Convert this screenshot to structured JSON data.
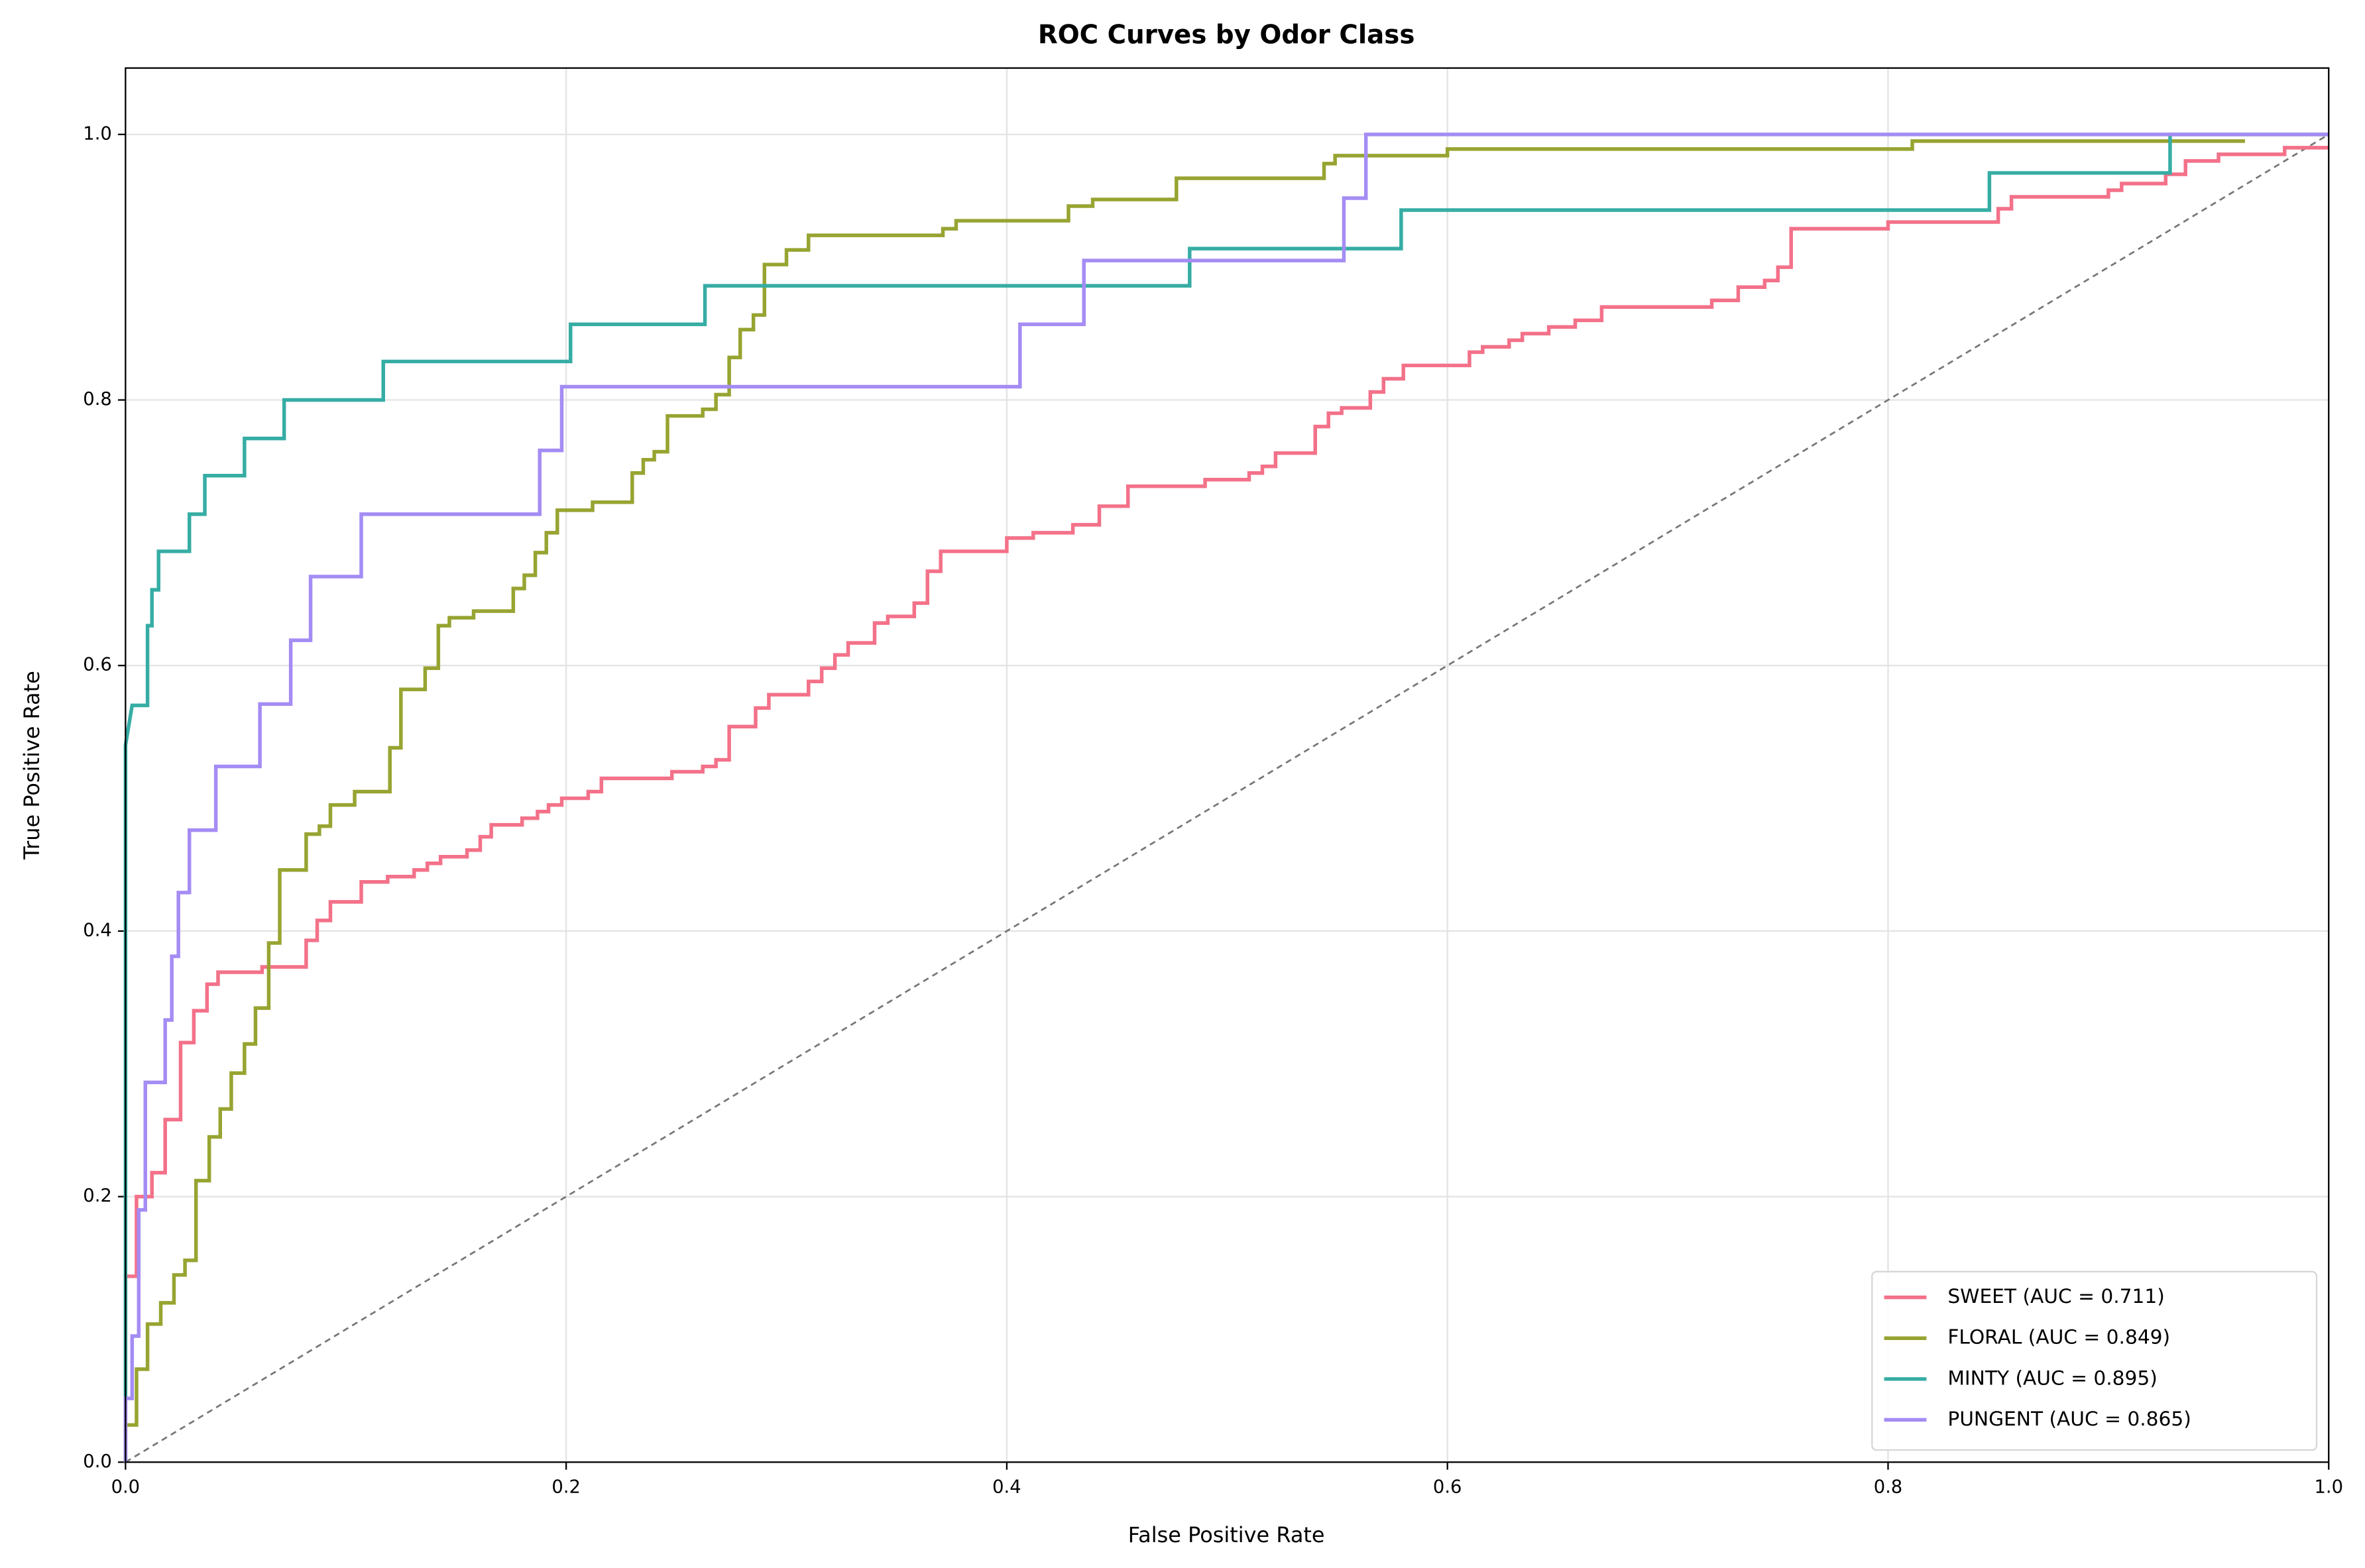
{
  "chart_data": {
    "type": "line",
    "title": "ROC Curves by Odor Class",
    "x_label": "False Positive Rate",
    "y_label": "True Positive Rate",
    "xlim": [
      0,
      1
    ],
    "ylim": [
      0,
      1.05
    ],
    "xticks": [
      {
        "value": 0,
        "label": "0.0"
      },
      0.2,
      0.4,
      0.6,
      0.8,
      {
        "value": 1,
        "label": "1.0"
      }
    ],
    "yticks": [
      {
        "value": 0,
        "label": "0.0"
      },
      0.2,
      0.4,
      0.6,
      0.8,
      {
        "value": 1,
        "label": "1.0"
      }
    ],
    "grid": true,
    "legend_position": "lower right",
    "reference_line": {
      "x": [
        0,
        1
      ],
      "values": [
        0,
        1
      ],
      "color": "#777777",
      "dashed": true
    },
    "series": [
      {
        "name": "SWEET (AUC = 0.711)",
        "color": "#f37189",
        "x": [
          0,
          0,
          0.005,
          0.005,
          0.012,
          0.012,
          0.018,
          0.018,
          0.025,
          0.025,
          0.031,
          0.031,
          0.037,
          0.037,
          0.042,
          0.042,
          0.062,
          0.062,
          0.082,
          0.082,
          0.087,
          0.087,
          0.093,
          0.093,
          0.107,
          0.107,
          0.119,
          0.119,
          0.131,
          0.131,
          0.137,
          0.137,
          0.143,
          0.143,
          0.155,
          0.155,
          0.161,
          0.161,
          0.166,
          0.166,
          0.18,
          0.18,
          0.187,
          0.187,
          0.192,
          0.192,
          0.198,
          0.198,
          0.21,
          0.21,
          0.216,
          0.216,
          0.248,
          0.248,
          0.262,
          0.262,
          0.268,
          0.268,
          0.274,
          0.274,
          0.286,
          0.286,
          0.292,
          0.292,
          0.31,
          0.31,
          0.316,
          0.316,
          0.322,
          0.322,
          0.328,
          0.328,
          0.34,
          0.34,
          0.346,
          0.346,
          0.358,
          0.358,
          0.364,
          0.364,
          0.37,
          0.37,
          0.4,
          0.4,
          0.412,
          0.412,
          0.43,
          0.43,
          0.442,
          0.442,
          0.455,
          0.455,
          0.49,
          0.49,
          0.51,
          0.51,
          0.516,
          0.516,
          0.522,
          0.522,
          0.54,
          0.54,
          0.546,
          0.546,
          0.552,
          0.552,
          0.565,
          0.565,
          0.571,
          0.571,
          0.58,
          0.58,
          0.61,
          0.61,
          0.616,
          0.616,
          0.628,
          0.628,
          0.634,
          0.634,
          0.646,
          0.646,
          0.658,
          0.658,
          0.67,
          0.67,
          0.72,
          0.72,
          0.732,
          0.732,
          0.744,
          0.744,
          0.75,
          0.75,
          0.756,
          0.756,
          0.8,
          0.8,
          0.85,
          0.85,
          0.856,
          0.856,
          0.9,
          0.9,
          0.906,
          0.906,
          0.926,
          0.926,
          0.935,
          0.935,
          0.95,
          0.95,
          0.98,
          0.98,
          1
        ],
        "values": [
          0,
          0.14,
          0.14,
          0.2,
          0.2,
          0.218,
          0.218,
          0.258,
          0.258,
          0.316,
          0.316,
          0.34,
          0.34,
          0.36,
          0.36,
          0.369,
          0.369,
          0.373,
          0.373,
          0.393,
          0.393,
          0.408,
          0.408,
          0.422,
          0.422,
          0.437,
          0.437,
          0.441,
          0.441,
          0.446,
          0.446,
          0.451,
          0.451,
          0.456,
          0.456,
          0.461,
          0.461,
          0.471,
          0.471,
          0.48,
          0.48,
          0.485,
          0.485,
          0.49,
          0.49,
          0.495,
          0.495,
          0.5,
          0.5,
          0.505,
          0.505,
          0.515,
          0.515,
          0.52,
          0.52,
          0.524,
          0.524,
          0.529,
          0.529,
          0.554,
          0.554,
          0.568,
          0.568,
          0.578,
          0.578,
          0.588,
          0.588,
          0.598,
          0.598,
          0.608,
          0.608,
          0.617,
          0.617,
          0.632,
          0.632,
          0.637,
          0.637,
          0.647,
          0.647,
          0.671,
          0.671,
          0.686,
          0.686,
          0.696,
          0.696,
          0.7,
          0.7,
          0.706,
          0.706,
          0.72,
          0.72,
          0.735,
          0.735,
          0.74,
          0.74,
          0.745,
          0.745,
          0.75,
          0.75,
          0.76,
          0.76,
          0.78,
          0.78,
          0.79,
          0.79,
          0.794,
          0.794,
          0.806,
          0.806,
          0.816,
          0.816,
          0.826,
          0.826,
          0.836,
          0.836,
          0.84,
          0.84,
          0.845,
          0.845,
          0.85,
          0.85,
          0.855,
          0.855,
          0.86,
          0.86,
          0.87,
          0.87,
          0.875,
          0.875,
          0.885,
          0.885,
          0.89,
          0.89,
          0.9,
          0.9,
          0.929,
          0.929,
          0.934,
          0.934,
          0.944,
          0.944,
          0.953,
          0.953,
          0.958,
          0.958,
          0.963,
          0.963,
          0.97,
          0.97,
          0.98,
          0.98,
          0.985,
          0.985,
          0.99,
          0.99
        ]
      },
      {
        "name": "FLORAL (AUC = 0.849)",
        "color": "#97a431",
        "x": [
          0,
          0,
          0.005,
          0.005,
          0.01,
          0.01,
          0.016,
          0.016,
          0.022,
          0.022,
          0.027,
          0.027,
          0.032,
          0.032,
          0.038,
          0.038,
          0.043,
          0.043,
          0.048,
          0.048,
          0.054,
          0.054,
          0.059,
          0.059,
          0.065,
          0.065,
          0.07,
          0.07,
          0.082,
          0.082,
          0.088,
          0.088,
          0.093,
          0.093,
          0.104,
          0.104,
          0.12,
          0.12,
          0.125,
          0.125,
          0.136,
          0.136,
          0.142,
          0.142,
          0.147,
          0.147,
          0.158,
          0.158,
          0.176,
          0.176,
          0.181,
          0.181,
          0.186,
          0.186,
          0.191,
          0.191,
          0.196,
          0.196,
          0.212,
          0.212,
          0.23,
          0.23,
          0.235,
          0.235,
          0.24,
          0.24,
          0.246,
          0.246,
          0.262,
          0.262,
          0.268,
          0.268,
          0.274,
          0.274,
          0.279,
          0.279,
          0.285,
          0.285,
          0.29,
          0.29,
          0.3,
          0.3,
          0.31,
          0.31,
          0.371,
          0.371,
          0.377,
          0.377,
          0.428,
          0.428,
          0.439,
          0.439,
          0.477,
          0.477,
          0.544,
          0.544,
          0.549,
          0.549,
          0.6,
          0.6,
          0.811,
          0.811,
          0.962
        ],
        "values": [
          0,
          0.028,
          0.028,
          0.07,
          0.07,
          0.104,
          0.104,
          0.12,
          0.12,
          0.141,
          0.141,
          0.152,
          0.152,
          0.212,
          0.212,
          0.245,
          0.245,
          0.266,
          0.266,
          0.293,
          0.293,
          0.315,
          0.315,
          0.342,
          0.342,
          0.391,
          0.391,
          0.446,
          0.446,
          0.473,
          0.473,
          0.479,
          0.479,
          0.495,
          0.495,
          0.505,
          0.505,
          0.538,
          0.538,
          0.582,
          0.582,
          0.598,
          0.598,
          0.63,
          0.63,
          0.636,
          0.636,
          0.641,
          0.641,
          0.658,
          0.658,
          0.668,
          0.668,
          0.685,
          0.685,
          0.7,
          0.7,
          0.717,
          0.717,
          0.723,
          0.723,
          0.745,
          0.745,
          0.755,
          0.755,
          0.761,
          0.761,
          0.788,
          0.788,
          0.793,
          0.793,
          0.804,
          0.804,
          0.832,
          0.832,
          0.853,
          0.853,
          0.864,
          0.864,
          0.902,
          0.902,
          0.913,
          0.913,
          0.924,
          0.924,
          0.929,
          0.929,
          0.935,
          0.935,
          0.946,
          0.946,
          0.951,
          0.951,
          0.967,
          0.967,
          0.978,
          0.978,
          0.984,
          0.984,
          0.989,
          0.989,
          0.995,
          0.995
        ]
      },
      {
        "name": "MINTY (AUC = 0.895)",
        "color": "#36ada4",
        "x": [
          0,
          0,
          0.003,
          0.01,
          0.01,
          0.012,
          0.012,
          0.015,
          0.015,
          0.029,
          0.029,
          0.036,
          0.036,
          0.054,
          0.054,
          0.072,
          0.072,
          0.117,
          0.117,
          0.202,
          0.202,
          0.263,
          0.263,
          0.483,
          0.483,
          0.579,
          0.579,
          0.846,
          0.846,
          0.928,
          0.928,
          1
        ],
        "values": [
          0,
          0.54,
          0.57,
          0.57,
          0.63,
          0.63,
          0.657,
          0.657,
          0.686,
          0.686,
          0.714,
          0.714,
          0.743,
          0.743,
          0.771,
          0.771,
          0.8,
          0.8,
          0.829,
          0.829,
          0.857,
          0.857,
          0.886,
          0.886,
          0.914,
          0.914,
          0.943,
          0.943,
          0.971,
          0.971,
          1,
          1
        ]
      },
      {
        "name": "PUNGENT (AUC = 0.865)",
        "color": "#a48cf4",
        "x": [
          0,
          0,
          0.003,
          0.003,
          0.006,
          0.006,
          0.009,
          0.009,
          0.018,
          0.018,
          0.021,
          0.021,
          0.024,
          0.024,
          0.029,
          0.029,
          0.041,
          0.041,
          0.061,
          0.061,
          0.075,
          0.075,
          0.084,
          0.084,
          0.107,
          0.107,
          0.188,
          0.188,
          0.198,
          0.198,
          0.406,
          0.406,
          0.435,
          0.435,
          0.553,
          0.553,
          0.563,
          0.563,
          1
        ],
        "values": [
          0,
          0.048,
          0.048,
          0.095,
          0.095,
          0.19,
          0.19,
          0.286,
          0.286,
          0.333,
          0.333,
          0.381,
          0.381,
          0.429,
          0.429,
          0.476,
          0.476,
          0.524,
          0.524,
          0.571,
          0.571,
          0.619,
          0.619,
          0.667,
          0.667,
          0.714,
          0.714,
          0.762,
          0.762,
          0.81,
          0.81,
          0.857,
          0.857,
          0.905,
          0.905,
          0.952,
          0.952,
          1,
          1
        ]
      }
    ]
  }
}
